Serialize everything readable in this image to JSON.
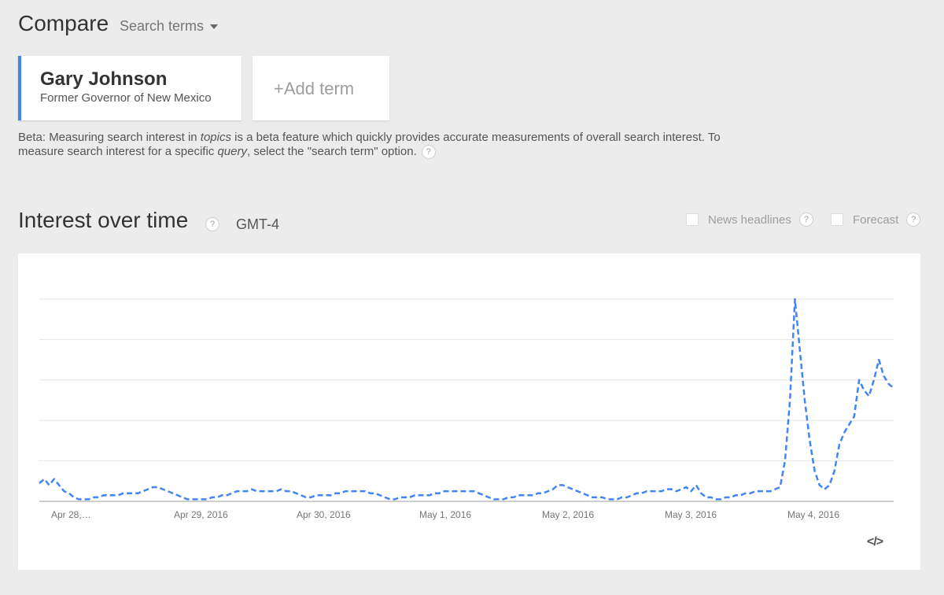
{
  "header": {
    "compare_title": "Compare",
    "search_terms_label": "Search terms"
  },
  "term": {
    "name": "Gary Johnson",
    "subtitle": "Former Governor of New Mexico",
    "accent_color": "#4285f4"
  },
  "add_term_label": "+Add term",
  "beta_note": {
    "text1": "Beta: Measuring search interest in ",
    "em1": "topics",
    "text2": " is a beta feature which quickly provides accurate measurements of overall search interest. To measure search interest for a specific ",
    "em2": "query",
    "text3": ", select the \"search term\" option."
  },
  "section": {
    "title": "Interest over time",
    "timezone": "GMT-4",
    "help_glyph": "?"
  },
  "toggles": {
    "news_headlines": "News headlines",
    "forecast": "Forecast"
  },
  "embed_label": "</>",
  "chart_data": {
    "type": "line",
    "series_color": "#4285f4",
    "line_style": "dashed",
    "grid": "horizontal",
    "ylim": [
      0,
      100
    ],
    "x_tick_labels": [
      "Apr 28,…",
      "Apr 29, 2016",
      "Apr 30, 2016",
      "May 1, 2016",
      "May 2, 2016",
      "May 3, 2016",
      "May 4, 2016"
    ],
    "values": [
      9,
      11,
      8,
      11,
      8,
      5,
      4,
      2,
      1,
      1,
      1,
      2,
      2,
      3,
      3,
      3,
      3,
      4,
      4,
      4,
      4,
      5,
      6,
      7,
      7,
      6,
      5,
      4,
      3,
      2,
      1,
      1,
      1,
      1,
      1,
      2,
      2,
      3,
      3,
      4,
      5,
      5,
      5,
      6,
      5,
      5,
      5,
      5,
      5,
      6,
      5,
      5,
      4,
      3,
      2,
      2,
      3,
      3,
      3,
      3,
      4,
      4,
      5,
      5,
      5,
      5,
      5,
      4,
      4,
      3,
      2,
      1,
      1,
      2,
      2,
      2,
      3,
      3,
      3,
      3,
      4,
      4,
      5,
      5,
      5,
      5,
      5,
      5,
      5,
      4,
      3,
      2,
      1,
      1,
      1,
      2,
      2,
      3,
      3,
      3,
      3,
      4,
      4,
      5,
      6,
      8,
      8,
      7,
      6,
      5,
      4,
      3,
      2,
      2,
      2,
      1,
      1,
      1,
      2,
      2,
      3,
      4,
      4,
      5,
      5,
      5,
      5,
      6,
      6,
      5,
      6,
      7,
      5,
      8,
      4,
      2,
      2,
      1,
      1,
      2,
      2,
      3,
      3,
      4,
      4,
      5,
      5,
      5,
      5,
      6,
      7,
      20,
      50,
      100,
      75,
      50,
      30,
      15,
      8,
      6,
      8,
      15,
      28,
      34,
      38,
      42,
      60,
      55,
      52,
      60,
      70,
      62,
      58,
      56
    ]
  }
}
